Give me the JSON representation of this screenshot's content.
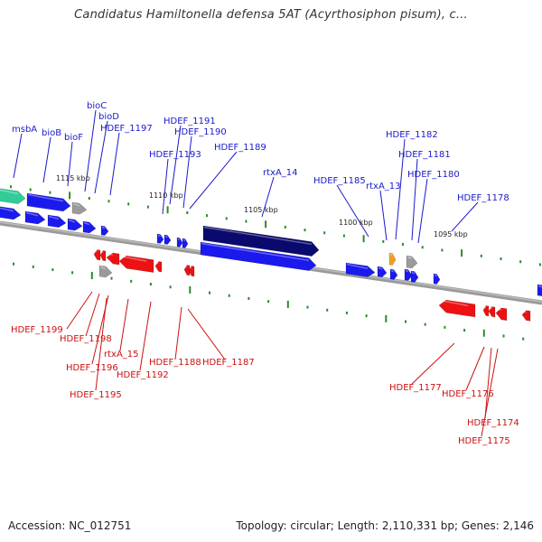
{
  "title": "Candidatus Hamiltonella defensa 5AT (Acyrthosiphon pisum), c...",
  "accession": "Accession: NC_012751",
  "summary": "Topology: circular; Length: 2,110,331 bp; Genes: 2,146",
  "colors": {
    "forward": "#1a1aee",
    "reverse": "#ee1111",
    "rna_green": "#33cc99",
    "dark_navy": "#0a0a6e",
    "grey": "#9a9a9a",
    "orange": "#f0a020",
    "backbone": "#888888",
    "tick": "#2a8a2a",
    "fwd_label": "#1a1acc",
    "rev_label": "#cc1111"
  },
  "kbp_labels": [
    "1115 kbp",
    "1110 kbp",
    "1105 kbp",
    "1100 kbp",
    "1095 kbp"
  ],
  "forward_genes": [
    "msbA",
    "bioB",
    "bioF",
    "bioC",
    "bioD",
    "HDEF_1197",
    "HDEF_1191",
    "HDEF_1190",
    "HDEF_1193",
    "HDEF_1189",
    "rtxA_14",
    "HDEF_1185",
    "rtxA_13",
    "HDEF_1182",
    "HDEF_1181",
    "HDEF_1180",
    "HDEF_1178"
  ],
  "reverse_genes": [
    "HDEF_1199",
    "HDEF_1198",
    "rtxA_15",
    "HDEF_1196",
    "HDEF_1195",
    "HDEF_1192",
    "HDEF_1188",
    "HDEF_1187",
    "HDEF_1177",
    "HDEF_1176",
    "HDEF_1174",
    "HDEF_1175"
  ]
}
